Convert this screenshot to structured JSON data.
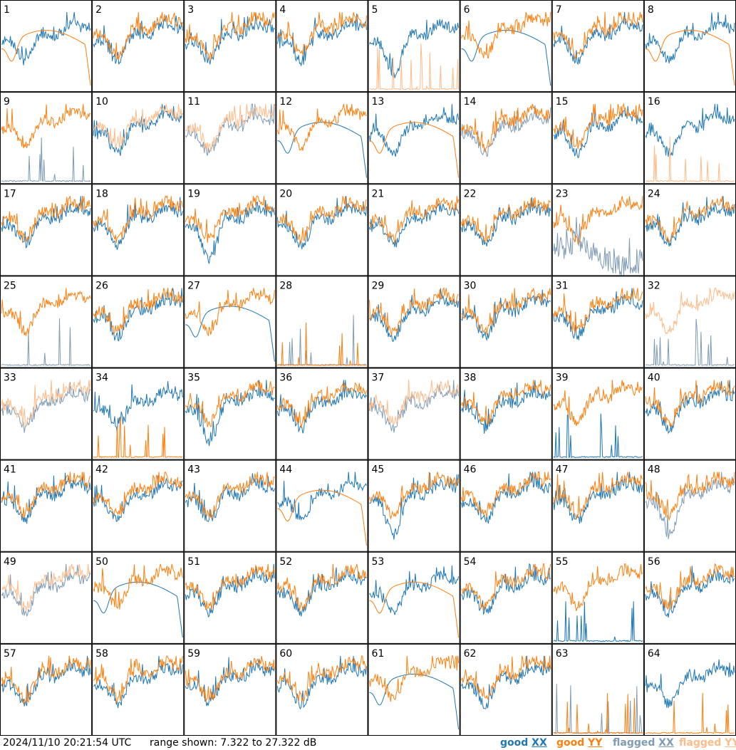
{
  "footer": {
    "timestamp": "2024/11/10 20:21:54 UTC",
    "range_text": "range shown: 7.322 to 27.322 dB",
    "legend": [
      {
        "word": "good",
        "pol": "XX",
        "color": "#1f77b4"
      },
      {
        "word": "good",
        "pol": "YY",
        "color": "#ff7f0e"
      },
      {
        "word": "flagged",
        "pol": "XX",
        "color": "#7f9bb5"
      },
      {
        "word": "flagged",
        "pol": "YY",
        "color": "#ffbb88"
      }
    ]
  },
  "colors": {
    "good_xx": "#1f77b4",
    "good_yy": "#ff7f0e",
    "flagged_xx": "#7f9bb5",
    "flagged_yy": "#ffbb88",
    "grid_lines": "#000000",
    "background": "#ffffff"
  },
  "chart_data": {
    "type": "line",
    "grid_rows": 8,
    "grid_cols": 8,
    "y_range_db": [
      7.322,
      27.322
    ],
    "panels": [
      {
        "id": "1",
        "xx": "good",
        "yy": "good",
        "xx_shape": "normal",
        "yy_shape": "smooth"
      },
      {
        "id": "2",
        "xx": "good",
        "yy": "good",
        "xx_shape": "normal",
        "yy_shape": "normal"
      },
      {
        "id": "3",
        "xx": "good",
        "yy": "good",
        "xx_shape": "normal",
        "yy_shape": "normal"
      },
      {
        "id": "4",
        "xx": "good",
        "yy": "good",
        "xx_shape": "normal",
        "yy_shape": "normal"
      },
      {
        "id": "5",
        "xx": "good",
        "yy": "flagged",
        "xx_shape": "deep",
        "yy_shape": "spiky"
      },
      {
        "id": "6",
        "xx": "good",
        "yy": "good",
        "xx_shape": "smooth",
        "yy_shape": "normal"
      },
      {
        "id": "7",
        "xx": "good",
        "yy": "good",
        "xx_shape": "normal",
        "yy_shape": "normal"
      },
      {
        "id": "8",
        "xx": "good",
        "yy": "good",
        "xx_shape": "normal",
        "yy_shape": "smooth"
      },
      {
        "id": "9",
        "xx": "flagged",
        "yy": "good",
        "xx_shape": "spiky",
        "yy_shape": "normal"
      },
      {
        "id": "10",
        "xx": "good",
        "yy": "flagged",
        "xx_shape": "normal",
        "yy_shape": "normal"
      },
      {
        "id": "11",
        "xx": "flagged",
        "yy": "flagged",
        "xx_shape": "normal",
        "yy_shape": "normal"
      },
      {
        "id": "12",
        "xx": "good",
        "yy": "good",
        "xx_shape": "smooth",
        "yy_shape": "normal"
      },
      {
        "id": "13",
        "xx": "good",
        "yy": "good",
        "xx_shape": "normal",
        "yy_shape": "smooth"
      },
      {
        "id": "14",
        "xx": "flagged",
        "yy": "good",
        "xx_shape": "normal",
        "yy_shape": "normal"
      },
      {
        "id": "15",
        "xx": "good",
        "yy": "good",
        "xx_shape": "normal",
        "yy_shape": "normal"
      },
      {
        "id": "16",
        "xx": "good",
        "yy": "flagged",
        "xx_shape": "normal",
        "yy_shape": "spiky"
      },
      {
        "id": "17",
        "xx": "good",
        "yy": "good",
        "xx_shape": "normal",
        "yy_shape": "normal"
      },
      {
        "id": "18",
        "xx": "good",
        "yy": "good",
        "xx_shape": "normal",
        "yy_shape": "normal"
      },
      {
        "id": "19",
        "xx": "good",
        "yy": "good",
        "xx_shape": "deep",
        "yy_shape": "normal"
      },
      {
        "id": "20",
        "xx": "good",
        "yy": "good",
        "xx_shape": "normal",
        "yy_shape": "normal"
      },
      {
        "id": "21",
        "xx": "good",
        "yy": "good",
        "xx_shape": "normal",
        "yy_shape": "normal"
      },
      {
        "id": "22",
        "xx": "good",
        "yy": "good",
        "xx_shape": "normal",
        "yy_shape": "normal"
      },
      {
        "id": "23",
        "xx": "flagged",
        "yy": "good",
        "xx_shape": "low",
        "yy_shape": "normal"
      },
      {
        "id": "24",
        "xx": "good",
        "yy": "good",
        "xx_shape": "normal",
        "yy_shape": "normal"
      },
      {
        "id": "25",
        "xx": "flagged",
        "yy": "good",
        "xx_shape": "spiky",
        "yy_shape": "normal"
      },
      {
        "id": "26",
        "xx": "good",
        "yy": "good",
        "xx_shape": "normal",
        "yy_shape": "normal"
      },
      {
        "id": "27",
        "xx": "good",
        "yy": "good",
        "xx_shape": "smooth",
        "yy_shape": "normal"
      },
      {
        "id": "28",
        "xx": "flagged",
        "yy": "good",
        "xx_shape": "spiky",
        "yy_shape": "spiky"
      },
      {
        "id": "29",
        "xx": "good",
        "yy": "good",
        "xx_shape": "normal",
        "yy_shape": "normal"
      },
      {
        "id": "30",
        "xx": "good",
        "yy": "good",
        "xx_shape": "normal",
        "yy_shape": "normal"
      },
      {
        "id": "31",
        "xx": "good",
        "yy": "good",
        "xx_shape": "normal",
        "yy_shape": "normal"
      },
      {
        "id": "32",
        "xx": "flagged",
        "yy": "flagged",
        "xx_shape": "spiky",
        "yy_shape": "normal"
      },
      {
        "id": "33",
        "xx": "flagged",
        "yy": "flagged",
        "xx_shape": "normal",
        "yy_shape": "normal"
      },
      {
        "id": "34",
        "xx": "good",
        "yy": "good",
        "xx_shape": "normal",
        "yy_shape": "spiky"
      },
      {
        "id": "35",
        "xx": "good",
        "yy": "good",
        "xx_shape": "deep",
        "yy_shape": "normal"
      },
      {
        "id": "36",
        "xx": "good",
        "yy": "good",
        "xx_shape": "normal",
        "yy_shape": "normal"
      },
      {
        "id": "37",
        "xx": "flagged",
        "yy": "flagged",
        "xx_shape": "normal",
        "yy_shape": "normal"
      },
      {
        "id": "38",
        "xx": "good",
        "yy": "good",
        "xx_shape": "normal",
        "yy_shape": "normal"
      },
      {
        "id": "39",
        "xx": "good",
        "yy": "good",
        "xx_shape": "spiky",
        "yy_shape": "normal"
      },
      {
        "id": "40",
        "xx": "good",
        "yy": "good",
        "xx_shape": "normal",
        "yy_shape": "normal"
      },
      {
        "id": "41",
        "xx": "good",
        "yy": "good",
        "xx_shape": "normal",
        "yy_shape": "normal"
      },
      {
        "id": "42",
        "xx": "good",
        "yy": "good",
        "xx_shape": "normal",
        "yy_shape": "normal"
      },
      {
        "id": "43",
        "xx": "good",
        "yy": "good",
        "xx_shape": "normal",
        "yy_shape": "normal"
      },
      {
        "id": "44",
        "xx": "good",
        "yy": "good",
        "xx_shape": "normal",
        "yy_shape": "smooth"
      },
      {
        "id": "45",
        "xx": "good",
        "yy": "good",
        "xx_shape": "deep",
        "yy_shape": "normal"
      },
      {
        "id": "46",
        "xx": "good",
        "yy": "good",
        "xx_shape": "normal",
        "yy_shape": "normal"
      },
      {
        "id": "47",
        "xx": "good",
        "yy": "good",
        "xx_shape": "normal",
        "yy_shape": "normal"
      },
      {
        "id": "48",
        "xx": "flagged",
        "yy": "good",
        "xx_shape": "deep",
        "yy_shape": "normal"
      },
      {
        "id": "49",
        "xx": "flagged",
        "yy": "flagged",
        "xx_shape": "normal",
        "yy_shape": "normal"
      },
      {
        "id": "50",
        "xx": "good",
        "yy": "good",
        "xx_shape": "smooth",
        "yy_shape": "normal"
      },
      {
        "id": "51",
        "xx": "good",
        "yy": "good",
        "xx_shape": "normal",
        "yy_shape": "normal"
      },
      {
        "id": "52",
        "xx": "good",
        "yy": "good",
        "xx_shape": "normal",
        "yy_shape": "normal"
      },
      {
        "id": "53",
        "xx": "good",
        "yy": "good",
        "xx_shape": "normal",
        "yy_shape": "smooth"
      },
      {
        "id": "54",
        "xx": "good",
        "yy": "good",
        "xx_shape": "normal",
        "yy_shape": "normal"
      },
      {
        "id": "55",
        "xx": "good",
        "yy": "good",
        "xx_shape": "spiky",
        "yy_shape": "normal"
      },
      {
        "id": "56",
        "xx": "good",
        "yy": "good",
        "xx_shape": "normal",
        "yy_shape": "normal"
      },
      {
        "id": "57",
        "xx": "good",
        "yy": "good",
        "xx_shape": "normal",
        "yy_shape": "normal"
      },
      {
        "id": "58",
        "xx": "good",
        "yy": "good",
        "xx_shape": "normal",
        "yy_shape": "normal"
      },
      {
        "id": "59",
        "xx": "good",
        "yy": "good",
        "xx_shape": "normal",
        "yy_shape": "normal"
      },
      {
        "id": "60",
        "xx": "good",
        "yy": "good",
        "xx_shape": "normal",
        "yy_shape": "normal"
      },
      {
        "id": "61",
        "xx": "good",
        "yy": "good",
        "xx_shape": "smooth",
        "yy_shape": "normal"
      },
      {
        "id": "62",
        "xx": "good",
        "yy": "good",
        "xx_shape": "normal",
        "yy_shape": "normal"
      },
      {
        "id": "63",
        "xx": "flagged",
        "yy": "good",
        "xx_shape": "spiky",
        "yy_shape": "spiky"
      },
      {
        "id": "64",
        "xx": "good",
        "yy": "good",
        "xx_shape": "normal",
        "yy_shape": "spiky"
      }
    ]
  }
}
